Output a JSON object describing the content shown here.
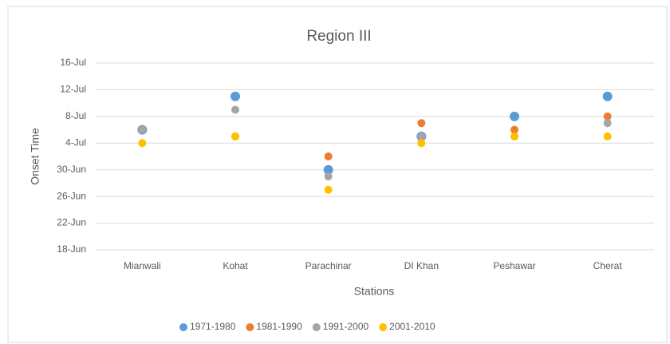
{
  "chart_data": {
    "type": "scatter",
    "title": "Region III",
    "x_label": "Stations",
    "y_label": "Onset Time",
    "categories": [
      "Mianwali",
      "Kohat",
      "Parachinar",
      "DI Khan",
      "Peshawar",
      "Cherat"
    ],
    "series": [
      {
        "name": "1971-1980",
        "color": "#5b9bd5",
        "values": [
          187,
          192,
          181,
          186,
          189,
          192
        ]
      },
      {
        "name": "1981-1990",
        "color": "#ed7d31",
        "values": [
          187,
          186,
          183,
          188,
          187,
          189
        ]
      },
      {
        "name": "1991-2000",
        "color": "#a5a5a5",
        "values": [
          187,
          190,
          180,
          186,
          186,
          188
        ]
      },
      {
        "name": "2001-2010",
        "color": "#ffc000",
        "values": [
          185,
          186,
          178,
          185,
          186,
          186
        ]
      }
    ],
    "ylim": [
      169,
      197
    ],
    "yticks": [
      {
        "value": 169,
        "label": "18-Jun"
      },
      {
        "value": 173,
        "label": "22-Jun"
      },
      {
        "value": 177,
        "label": "26-Jun"
      },
      {
        "value": 181,
        "label": "30-Jun"
      },
      {
        "value": 185,
        "label": "4-Jul"
      },
      {
        "value": 189,
        "label": "8-Jul"
      },
      {
        "value": 193,
        "label": "12-Jul"
      },
      {
        "value": 197,
        "label": "16-Jul"
      }
    ],
    "grid": true,
    "legend": "bottom"
  }
}
